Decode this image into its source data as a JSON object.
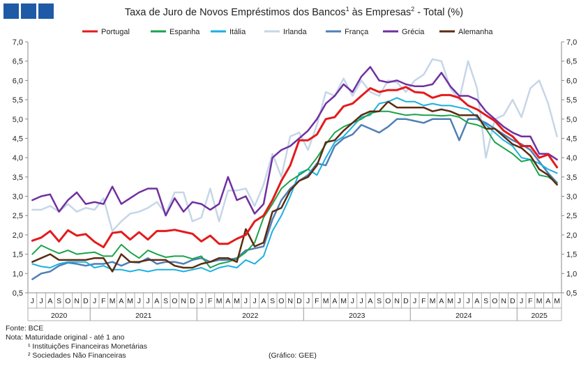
{
  "header": {
    "logo_color": "#1f5aa6",
    "title_pre": "Taxa de Juro de Novos Empréstimos dos Bancos",
    "sup1": "1",
    "title_mid": " às Empresas",
    "sup2": "2",
    "title_post": " - Total (%)"
  },
  "footer": {
    "source": "Fonte: BCE",
    "note": "Nota: Maturidade original - até 1 ano",
    "note1": "¹ Instituições Financeiras Monetárias",
    "note2": "² Sociedades Não Financeiras",
    "credit": "(Gráfico: GEE)"
  },
  "chart_data": {
    "type": "line",
    "title": "Taxa de Juro de Novos Empréstimos dos Bancos¹ às Empresas² - Total (%)",
    "ylim": [
      0.5,
      7.0
    ],
    "yticks": [
      "0,5",
      "1,0",
      "1,5",
      "2,0",
      "2,5",
      "3,0",
      "3,5",
      "4,0",
      "4,5",
      "5,0",
      "5,5",
      "6,0",
      "6,5",
      "7,0"
    ],
    "yticks_values": [
      0.5,
      1.0,
      1.5,
      2.0,
      2.5,
      3.0,
      3.5,
      4.0,
      4.5,
      5.0,
      5.5,
      6.0,
      6.5,
      7.0
    ],
    "grid": false,
    "legend_position": "top",
    "month_labels": [
      "J",
      "J",
      "A",
      "S",
      "O",
      "N",
      "D",
      "J",
      "F",
      "M",
      "A",
      "M",
      "J",
      "J",
      "A",
      "S",
      "O",
      "N",
      "D",
      "J",
      "F",
      "M",
      "A",
      "M",
      "J",
      "J",
      "A",
      "S",
      "O",
      "N",
      "D",
      "J",
      "F",
      "M",
      "A",
      "M",
      "J",
      "J",
      "A",
      "S",
      "O",
      "N",
      "D",
      "J",
      "F",
      "M",
      "A",
      "M",
      "J",
      "J",
      "A",
      "S",
      "O",
      "N",
      "D",
      "J",
      "F",
      "M",
      "A",
      "M"
    ],
    "years": [
      {
        "label": "2020",
        "start": 0,
        "end": 6
      },
      {
        "label": "2021",
        "start": 7,
        "end": 18
      },
      {
        "label": "2022",
        "start": 19,
        "end": 30
      },
      {
        "label": "2023",
        "start": 31,
        "end": 42
      },
      {
        "label": "2024",
        "start": 43,
        "end": 54
      },
      {
        "label": "2025",
        "start": 55,
        "end": 59
      }
    ],
    "series": [
      {
        "name": "Portugal",
        "color": "#e41a1c",
        "width": 3,
        "values": [
          1.85,
          1.93,
          2.1,
          1.83,
          2.12,
          1.98,
          2.02,
          1.82,
          1.68,
          2.05,
          2.08,
          1.88,
          2.07,
          1.88,
          2.1,
          2.1,
          2.13,
          2.08,
          2.03,
          1.83,
          1.98,
          1.77,
          1.77,
          1.9,
          2.0,
          2.35,
          2.5,
          2.9,
          3.4,
          3.8,
          4.45,
          4.45,
          4.6,
          5.0,
          5.05,
          5.33,
          5.4,
          5.6,
          5.8,
          5.7,
          5.75,
          5.75,
          5.83,
          5.7,
          5.68,
          5.55,
          5.62,
          5.62,
          5.55,
          5.35,
          5.25,
          5.1,
          4.95,
          4.7,
          4.55,
          4.3,
          4.3,
          4.0,
          4.08,
          3.75
        ]
      },
      {
        "name": "Espanha",
        "color": "#1aa34a",
        "width": 2,
        "values": [
          1.5,
          1.73,
          1.62,
          1.52,
          1.6,
          1.5,
          1.53,
          1.55,
          1.45,
          1.45,
          1.75,
          1.55,
          1.4,
          1.6,
          1.5,
          1.42,
          1.45,
          1.45,
          1.38,
          1.45,
          1.15,
          1.25,
          1.3,
          1.38,
          1.55,
          1.8,
          2.45,
          2.8,
          3.2,
          3.4,
          3.55,
          3.7,
          4.0,
          4.35,
          4.65,
          4.8,
          4.9,
          5.0,
          5.15,
          5.2,
          5.2,
          5.15,
          5.1,
          5.12,
          5.1,
          5.1,
          5.08,
          5.1,
          5.05,
          4.9,
          4.85,
          4.75,
          4.4,
          4.25,
          4.1,
          3.9,
          3.95,
          3.55,
          3.5,
          3.35
        ]
      },
      {
        "name": "Itália",
        "color": "#1ab0e0",
        "width": 2,
        "values": [
          1.25,
          1.18,
          1.15,
          1.25,
          1.3,
          1.3,
          1.3,
          1.15,
          1.2,
          1.1,
          1.1,
          1.05,
          1.1,
          1.05,
          1.1,
          1.1,
          1.1,
          1.05,
          1.1,
          1.15,
          1.05,
          1.15,
          1.2,
          1.15,
          1.35,
          1.25,
          1.45,
          2.1,
          2.5,
          3.0,
          3.6,
          3.7,
          3.55,
          4.0,
          4.4,
          4.55,
          4.8,
          5.05,
          5.1,
          5.4,
          5.45,
          5.55,
          5.45,
          5.45,
          5.35,
          5.4,
          5.35,
          5.35,
          5.3,
          5.25,
          5.05,
          4.85,
          4.65,
          4.45,
          4.3,
          4.0,
          3.95,
          3.85,
          3.7,
          3.6
        ]
      },
      {
        "name": "Irlanda",
        "color": "#c6d6e8",
        "width": 2.5,
        "values": [
          2.65,
          2.65,
          2.75,
          2.6,
          2.8,
          2.6,
          2.7,
          2.65,
          2.95,
          2.1,
          2.35,
          2.55,
          2.6,
          2.7,
          2.85,
          2.55,
          3.1,
          3.1,
          2.35,
          2.45,
          3.2,
          2.35,
          3.15,
          3.15,
          3.2,
          2.75,
          3.3,
          4.1,
          3.5,
          4.55,
          4.65,
          4.2,
          4.85,
          5.7,
          5.6,
          6.05,
          5.6,
          6.0,
          5.7,
          5.6,
          6.0,
          5.95,
          5.7,
          6.0,
          6.15,
          6.55,
          6.5,
          5.8,
          5.5,
          6.5,
          5.8,
          4.0,
          5.0,
          5.1,
          5.5,
          5.05,
          5.8,
          6.0,
          5.4,
          4.55
        ]
      },
      {
        "name": "França",
        "color": "#4f7fb7",
        "width": 2.5,
        "values": [
          0.85,
          1.0,
          1.05,
          1.2,
          1.28,
          1.25,
          1.2,
          1.25,
          1.25,
          1.3,
          1.2,
          1.3,
          1.28,
          1.4,
          1.25,
          1.3,
          1.3,
          1.25,
          1.35,
          1.4,
          1.3,
          1.35,
          1.35,
          1.4,
          1.6,
          1.65,
          1.7,
          2.4,
          2.9,
          3.2,
          3.4,
          3.55,
          3.85,
          3.8,
          4.3,
          4.5,
          4.6,
          4.85,
          4.75,
          4.65,
          4.8,
          5.0,
          5.0,
          4.95,
          4.9,
          5.0,
          5.0,
          5.0,
          4.45,
          5.0,
          5.0,
          4.9,
          4.75,
          4.6,
          4.45,
          4.35,
          4.2,
          3.9,
          3.6,
          3.35
        ]
      },
      {
        "name": "Grécia",
        "color": "#7030a0",
        "width": 2.5,
        "values": [
          2.9,
          3.0,
          3.05,
          2.6,
          2.9,
          3.1,
          2.8,
          2.85,
          2.8,
          3.25,
          2.8,
          2.95,
          3.1,
          3.2,
          3.2,
          2.5,
          2.95,
          2.6,
          2.85,
          2.8,
          2.65,
          2.8,
          3.5,
          2.9,
          3.0,
          2.55,
          2.8,
          4.0,
          4.2,
          4.3,
          4.5,
          4.7,
          5.0,
          5.4,
          5.6,
          5.9,
          5.7,
          6.1,
          6.35,
          6.0,
          5.95,
          6.0,
          5.9,
          5.85,
          5.85,
          5.9,
          6.2,
          5.85,
          5.6,
          5.6,
          5.5,
          5.2,
          5.0,
          4.8,
          4.65,
          4.55,
          4.55,
          4.1,
          4.1,
          3.95
        ]
      },
      {
        "name": "Alemanha",
        "color": "#5b2c0f",
        "width": 2.5,
        "values": [
          1.3,
          1.4,
          1.5,
          1.35,
          1.35,
          1.35,
          1.35,
          1.4,
          1.4,
          1.05,
          1.5,
          1.3,
          1.3,
          1.35,
          1.35,
          1.35,
          1.2,
          1.15,
          1.15,
          1.25,
          1.3,
          1.4,
          1.4,
          1.3,
          2.15,
          1.7,
          1.8,
          2.6,
          2.7,
          3.15,
          3.4,
          3.5,
          3.8,
          4.4,
          4.45,
          4.7,
          4.9,
          5.1,
          5.2,
          5.2,
          5.45,
          5.3,
          5.3,
          5.3,
          5.3,
          5.2,
          5.25,
          5.2,
          5.1,
          5.1,
          5.1,
          4.75,
          4.75,
          4.55,
          4.35,
          4.25,
          4.05,
          3.7,
          3.55,
          3.3
        ]
      }
    ]
  }
}
